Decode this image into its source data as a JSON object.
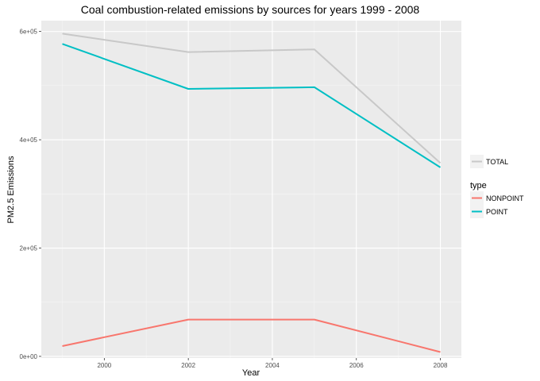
{
  "chart_data": {
    "type": "line",
    "title": "Coal combustion-related emissions by sources for years 1999 - 2008",
    "xlabel": "Year",
    "ylabel": "PM2.5 Emissions",
    "x": [
      1999,
      2002,
      2005,
      2008
    ],
    "xlim": [
      1998.5,
      2008.5
    ],
    "ylim": [
      -3000,
      620000
    ],
    "xticks": [
      2000,
      2002,
      2004,
      2006,
      2008
    ],
    "xtick_labels": [
      "2000",
      "2002",
      "2004",
      "2006",
      "2008"
    ],
    "yticks": [
      0,
      200000,
      400000,
      600000
    ],
    "ytick_labels": [
      "0e+00",
      "2e+05",
      "4e+05",
      "6e+05"
    ],
    "yminor": [
      100000,
      300000,
      500000
    ],
    "xminor": [
      1999,
      2001,
      2003,
      2005,
      2007
    ],
    "grid": true,
    "background": "#ebebeb",
    "series": [
      {
        "name": "TOTAL",
        "color": "#c8c8c8",
        "values": [
          596000,
          562000,
          567000,
          357000
        ]
      },
      {
        "name": "NONPOINT",
        "color": "#f8766d",
        "values": [
          19000,
          68000,
          68000,
          8000
        ]
      },
      {
        "name": "POINT",
        "color": "#00bfc4",
        "values": [
          577000,
          494000,
          497000,
          349000
        ]
      }
    ],
    "legend": {
      "placement": "right",
      "groups": [
        {
          "title": "",
          "items": [
            "TOTAL"
          ]
        },
        {
          "title": "type",
          "items": [
            "NONPOINT",
            "POINT"
          ]
        }
      ]
    }
  }
}
